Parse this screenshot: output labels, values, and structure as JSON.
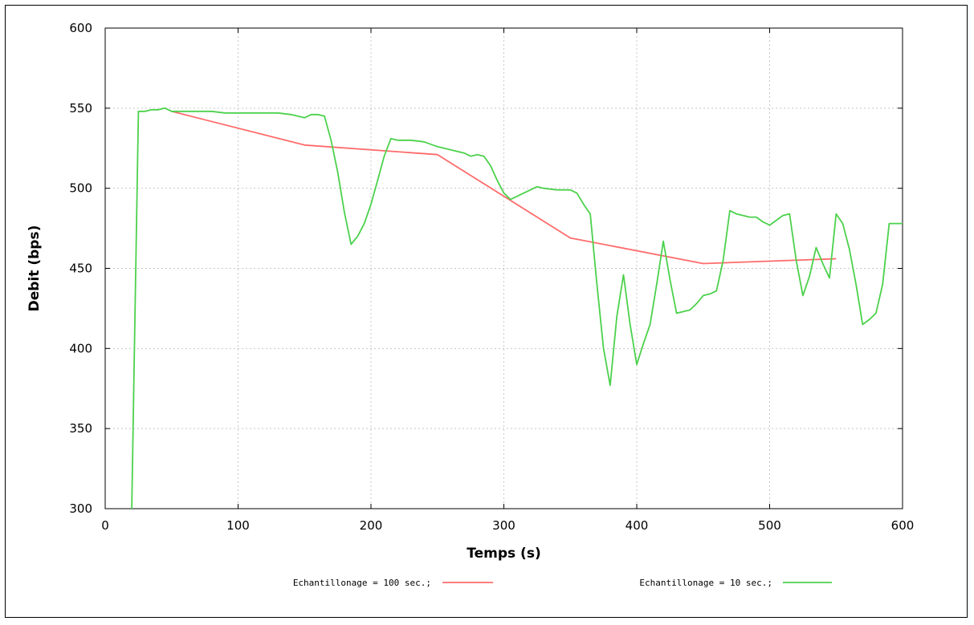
{
  "chart_data": {
    "type": "line",
    "title": "",
    "xlabel": "Temps (s)",
    "ylabel": "Debit (bps)",
    "xlim": [
      0,
      600
    ],
    "ylim": [
      300,
      600
    ],
    "xticks": [
      0,
      100,
      200,
      300,
      400,
      500,
      600
    ],
    "yticks": [
      300,
      350,
      400,
      450,
      500,
      550,
      600
    ],
    "grid": true,
    "legend_position": "bottom",
    "series": [
      {
        "name": "Echantillonage = 100 sec.;",
        "color": "#ff6b6b",
        "x": [
          50,
          150,
          250,
          350,
          450,
          550
        ],
        "y": [
          548,
          527,
          521,
          469,
          453,
          456
        ]
      },
      {
        "name": "Echantillonage = 10 sec.;",
        "color": "#4cd14c",
        "x": [
          20,
          22,
          25,
          30,
          35,
          40,
          45,
          50,
          60,
          70,
          80,
          90,
          100,
          110,
          120,
          130,
          140,
          150,
          155,
          160,
          165,
          170,
          175,
          180,
          185,
          190,
          195,
          200,
          205,
          210,
          215,
          220,
          230,
          240,
          250,
          260,
          270,
          275,
          280,
          285,
          290,
          295,
          300,
          305,
          310,
          320,
          325,
          330,
          340,
          350,
          355,
          360,
          365,
          370,
          375,
          380,
          385,
          390,
          395,
          400,
          405,
          410,
          415,
          420,
          425,
          430,
          440,
          445,
          450,
          455,
          460,
          465,
          470,
          475,
          480,
          485,
          490,
          495,
          500,
          505,
          510,
          515,
          520,
          525,
          530,
          535,
          540,
          545,
          550,
          555,
          560,
          565,
          570,
          575,
          580,
          585,
          590,
          595,
          600
        ],
        "y": [
          300,
          400,
          548,
          548,
          549,
          549,
          550,
          548,
          548,
          548,
          548,
          547,
          547,
          547,
          547,
          547,
          546,
          544,
          546,
          546,
          545,
          530,
          510,
          485,
          465,
          470,
          478,
          490,
          505,
          520,
          531,
          530,
          530,
          529,
          526,
          524,
          522,
          520,
          521,
          520,
          514,
          505,
          497,
          493,
          495,
          499,
          501,
          500,
          499,
          499,
          497,
          490,
          484,
          440,
          400,
          377,
          420,
          446,
          415,
          390,
          403,
          415,
          440,
          467,
          443,
          422,
          424,
          428,
          433,
          434,
          436,
          455,
          486,
          484,
          483,
          482,
          482,
          479,
          477,
          480,
          483,
          484,
          455,
          433,
          445,
          463,
          453,
          444,
          484,
          478,
          462,
          440,
          415,
          418,
          422,
          440,
          478,
          478,
          478
        ]
      }
    ]
  }
}
